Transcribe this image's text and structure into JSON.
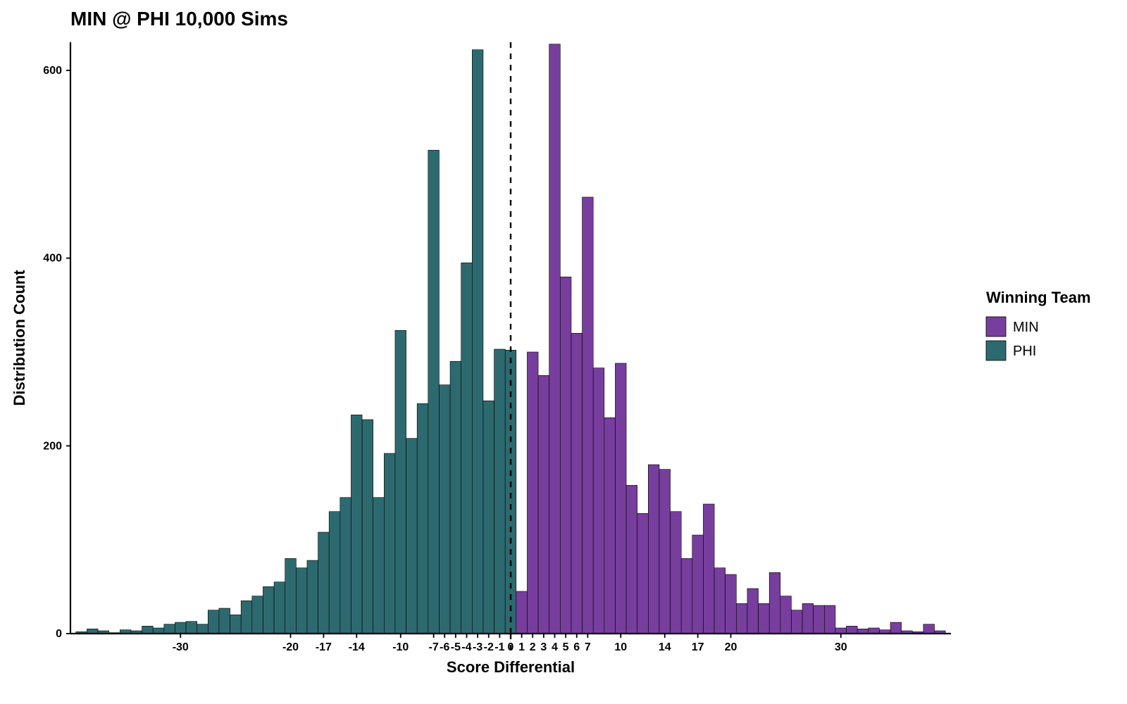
{
  "chart": {
    "type": "histogram",
    "title": "MIN @ PHI 10,000 Sims",
    "title_fontsize": 28,
    "title_fontweight": "700",
    "title_color": "#000000",
    "xlabel": "Score Differential",
    "ylabel": "Distribution Count",
    "axis_label_fontsize": 22,
    "axis_label_fontweight": "700",
    "axis_label_color": "#000000",
    "background_color": "#ffffff",
    "plot_background_color": "#ffffff",
    "bar_border_color": "#000000",
    "bar_border_width": 0.6,
    "tick_label_fontsize": 16,
    "tick_label_fontweight": "700",
    "tick_label_color": "#000000",
    "tick_color": "#000000",
    "tick_length": 6,
    "tick_width": 1.8,
    "axis_line_color": "#000000",
    "axis_line_width": 2.2,
    "y_ticks": [
      0,
      200,
      400,
      600
    ],
    "ylim": [
      0,
      630
    ],
    "xlim": [
      -40,
      40
    ],
    "x_tick_labels": [
      "-30",
      "-20",
      "-17",
      "-14",
      "-10",
      "-7",
      "-6",
      "-5",
      "-4",
      "-3",
      "-2",
      "-1",
      "0",
      "1",
      "2",
      "3",
      "4",
      "5",
      "6",
      "7",
      "10",
      "14",
      "17",
      "20",
      "30"
    ],
    "x_tick_positions": [
      -30,
      -20,
      -17,
      -14,
      -10,
      -7,
      -6,
      -5,
      -4,
      -3,
      -2,
      -1,
      0,
      1,
      2,
      3,
      4,
      5,
      6,
      7,
      10,
      14,
      17,
      20,
      30
    ],
    "vline_x": 0,
    "vline_color": "#000000",
    "vline_dash": "8,8",
    "vline_width": 2.4,
    "legend": {
      "title": "Winning Team",
      "title_fontsize": 22,
      "label_fontsize": 20,
      "items": [
        {
          "label": "MIN",
          "color": "#773e9e"
        },
        {
          "label": "PHI",
          "color": "#2d6a6f"
        }
      ],
      "swatch_w": 28,
      "swatch_h": 28,
      "swatch_border": "#000000"
    },
    "series": {
      "PHI": {
        "color": "#2d6a6f",
        "x": [
          -39,
          -38,
          -37,
          -36,
          -35,
          -34,
          -33,
          -32,
          -31,
          -30,
          -29,
          -28,
          -27,
          -26,
          -25,
          -24,
          -23,
          -22,
          -21,
          -20,
          -19,
          -18,
          -17,
          -16,
          -15,
          -14,
          -13,
          -12,
          -11,
          -10,
          -9,
          -8,
          -7,
          -6,
          -5,
          -4,
          -3,
          -2,
          -1,
          0
        ],
        "y": [
          2,
          5,
          3,
          1,
          4,
          3,
          8,
          6,
          10,
          12,
          13,
          10,
          25,
          27,
          20,
          35,
          40,
          50,
          55,
          80,
          70,
          78,
          108,
          130,
          145,
          233,
          228,
          145,
          192,
          323,
          208,
          245,
          515,
          265,
          290,
          395,
          622,
          248,
          303,
          302
        ]
      },
      "MIN": {
        "color": "#773e9e",
        "x": [
          1,
          2,
          3,
          4,
          5,
          6,
          7,
          8,
          9,
          10,
          11,
          12,
          13,
          14,
          15,
          16,
          17,
          18,
          19,
          20,
          21,
          22,
          23,
          24,
          25,
          26,
          27,
          28,
          29,
          30,
          31,
          32,
          33,
          34,
          35,
          36,
          37,
          38,
          39
        ],
        "y": [
          45,
          300,
          275,
          628,
          380,
          320,
          465,
          283,
          230,
          288,
          158,
          128,
          180,
          175,
          130,
          80,
          105,
          138,
          70,
          63,
          32,
          48,
          32,
          65,
          40,
          25,
          32,
          30,
          30,
          6,
          8,
          5,
          6,
          4,
          12,
          3,
          2,
          10,
          3
        ]
      }
    }
  }
}
